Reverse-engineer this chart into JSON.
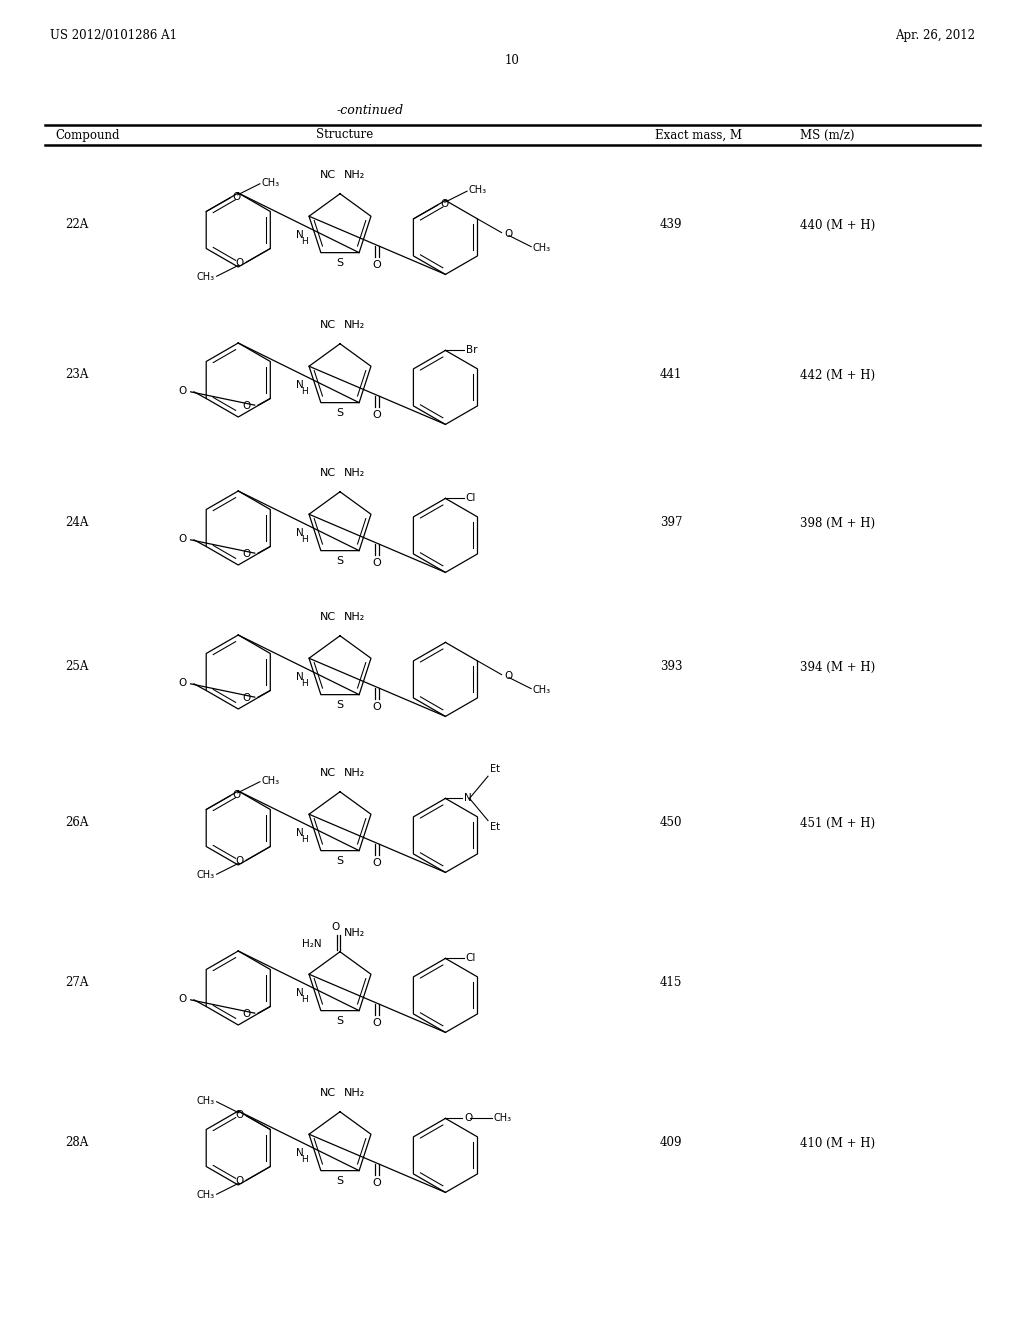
{
  "page_header_left": "US 2012/0101286 A1",
  "page_header_right": "Apr. 26, 2012",
  "page_number": "10",
  "table_title": "-continued",
  "compounds": [
    {
      "id": "22A",
      "exact_mass": "439",
      "ms": "440 (M + H)"
    },
    {
      "id": "23A",
      "exact_mass": "441",
      "ms": "442 (M + H)"
    },
    {
      "id": "24A",
      "exact_mass": "397",
      "ms": "398 (M + H)"
    },
    {
      "id": "25A",
      "exact_mass": "393",
      "ms": "394 (M + H)"
    },
    {
      "id": "26A",
      "exact_mass": "450",
      "ms": "451 (M + H)"
    },
    {
      "id": "27A",
      "exact_mass": "415",
      "ms": ""
    },
    {
      "id": "28A",
      "exact_mass": "409",
      "ms": "410 (M + H)"
    }
  ],
  "background_color": "#ffffff"
}
